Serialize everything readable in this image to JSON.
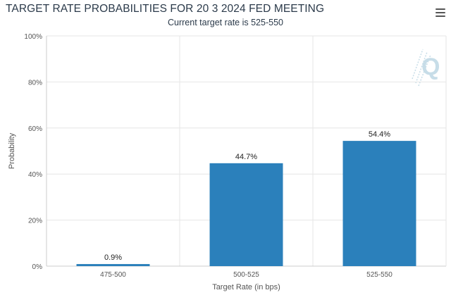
{
  "header": {
    "title": "TARGET RATE PROBABILITIES FOR 20 3 2024 FED MEETING",
    "subtitle": "Current target rate is 525-550"
  },
  "toolbar": {
    "menu_icon": "hamburger-menu-icon"
  },
  "watermark": {
    "icon": "quikstrike-q-logo",
    "color": "#c7dde8"
  },
  "colors": {
    "bar": "#2b80bb",
    "grid": "#e6e6e6",
    "axis": "#cccccc",
    "text": "#2b3a4a"
  },
  "chart_data": {
    "type": "bar",
    "categories": [
      "475-500",
      "500-525",
      "525-550"
    ],
    "values": [
      0.9,
      44.7,
      54.4
    ],
    "value_labels": [
      "0.9%",
      "44.7%",
      "54.4%"
    ],
    "title": "TARGET RATE PROBABILITIES FOR 20 3 2024 FED MEETING",
    "subtitle": "Current target rate is 525-550",
    "xlabel": "Target Rate (in bps)",
    "ylabel": "Probability",
    "ylim": [
      0,
      100
    ],
    "yticks": [
      "0%",
      "20%",
      "40%",
      "60%",
      "80%",
      "100%"
    ],
    "grid": true,
    "legend": "none"
  }
}
